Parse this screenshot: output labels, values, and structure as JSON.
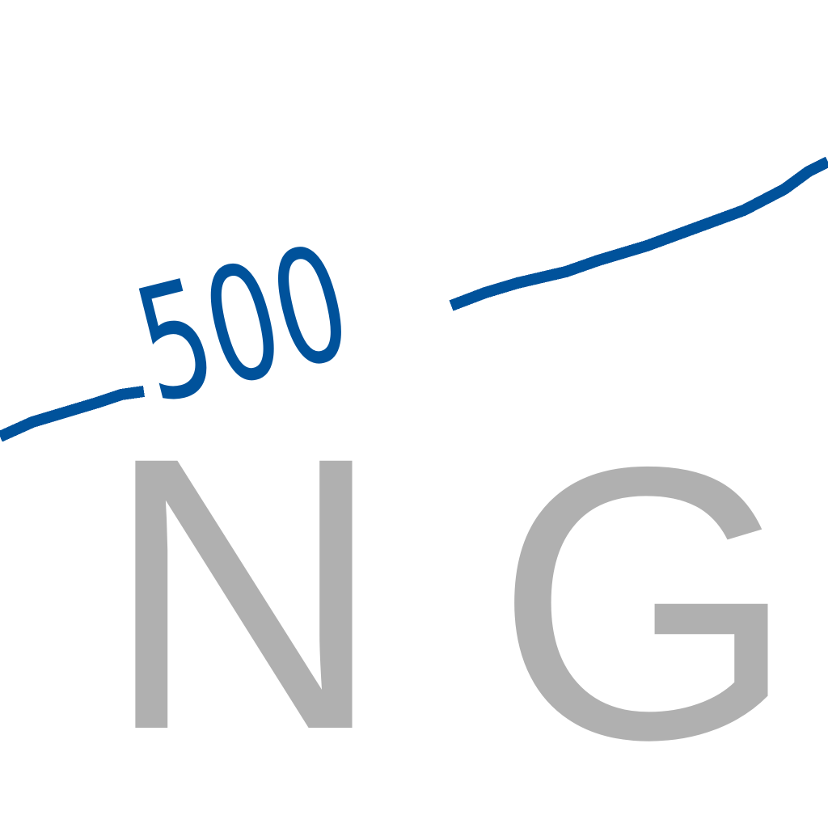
{
  "map": {
    "contour": {
      "elevation_label": "500",
      "color": "#00529b"
    },
    "area_label": {
      "letters": [
        "N",
        "G"
      ],
      "color": "#b0b0b0"
    },
    "background": "#ffffff"
  }
}
